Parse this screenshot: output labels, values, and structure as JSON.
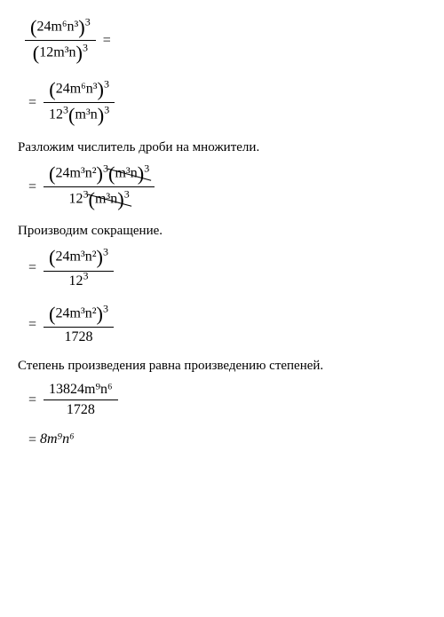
{
  "steps": {
    "line1_num": "24m⁶n³",
    "line1_num_pow": "3",
    "line1_den": "12m³n",
    "line1_den_pow": "3",
    "line2_num": "24m⁶n³",
    "line2_num_pow": "3",
    "line2_den_a": "12",
    "line2_den_a_pow": "3",
    "line2_den_b": "m³n",
    "line2_den_b_pow": "3",
    "text1": "Разложим числитель дроби на множители.",
    "line3_num_a": "24m³n²",
    "line3_num_a_pow": "3",
    "line3_num_b": "m³n",
    "line3_num_b_pow": "3",
    "line3_den_a": "12",
    "line3_den_a_pow": "3",
    "line3_den_b": "m³n",
    "line3_den_b_pow": "3",
    "text2": "Производим сокращение.",
    "line4_num": "24m³n²",
    "line4_num_pow": "3",
    "line4_den": "12",
    "line4_den_pow": "3",
    "line5_num": "24m³n²",
    "line5_num_pow": "3",
    "line5_den": "1728",
    "text3": "Степень произведения равна произведению степеней.",
    "line6_num": "13824m⁹n⁶",
    "line6_den": "1728",
    "line7": "8m⁹n⁶",
    "eq": "="
  }
}
